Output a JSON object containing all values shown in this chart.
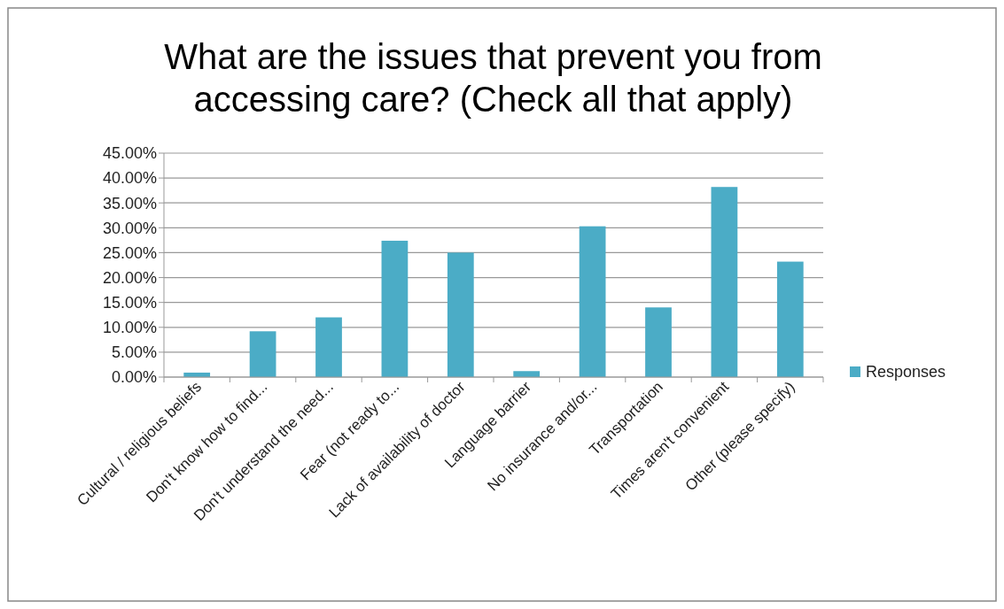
{
  "chart_data": {
    "type": "bar",
    "title": "What are the issues that prevent you from accessing care? (Check all that apply)",
    "categories": [
      "Cultural / religious beliefs",
      "Don't know how to find...",
      "Don't understand the need...",
      "Fear (not ready to...",
      "Lack of availability of doctor",
      "Language barrier",
      "No insurance and/or...",
      "Transportation",
      "Times aren't convenient",
      "Other (please specify)"
    ],
    "series": [
      {
        "name": "Responses",
        "color": "#4bacc6",
        "values": [
          0.9,
          9.2,
          12.0,
          27.4,
          25.0,
          1.2,
          30.3,
          14.0,
          38.2,
          23.2
        ]
      }
    ],
    "ylim": [
      0,
      45
    ],
    "yticks": [
      {
        "value": 0,
        "label": "0.00%"
      },
      {
        "value": 5,
        "label": "5.00%"
      },
      {
        "value": 10,
        "label": "10.00%"
      },
      {
        "value": 15,
        "label": "15.00%"
      },
      {
        "value": 20,
        "label": "20.00%"
      },
      {
        "value": 25,
        "label": "25.00%"
      },
      {
        "value": 30,
        "label": "30.00%"
      },
      {
        "value": 35,
        "label": "35.00%"
      },
      {
        "value": 40,
        "label": "40.00%"
      },
      {
        "value": 45,
        "label": "45.00%"
      }
    ],
    "grid": "y",
    "legend": "right"
  }
}
